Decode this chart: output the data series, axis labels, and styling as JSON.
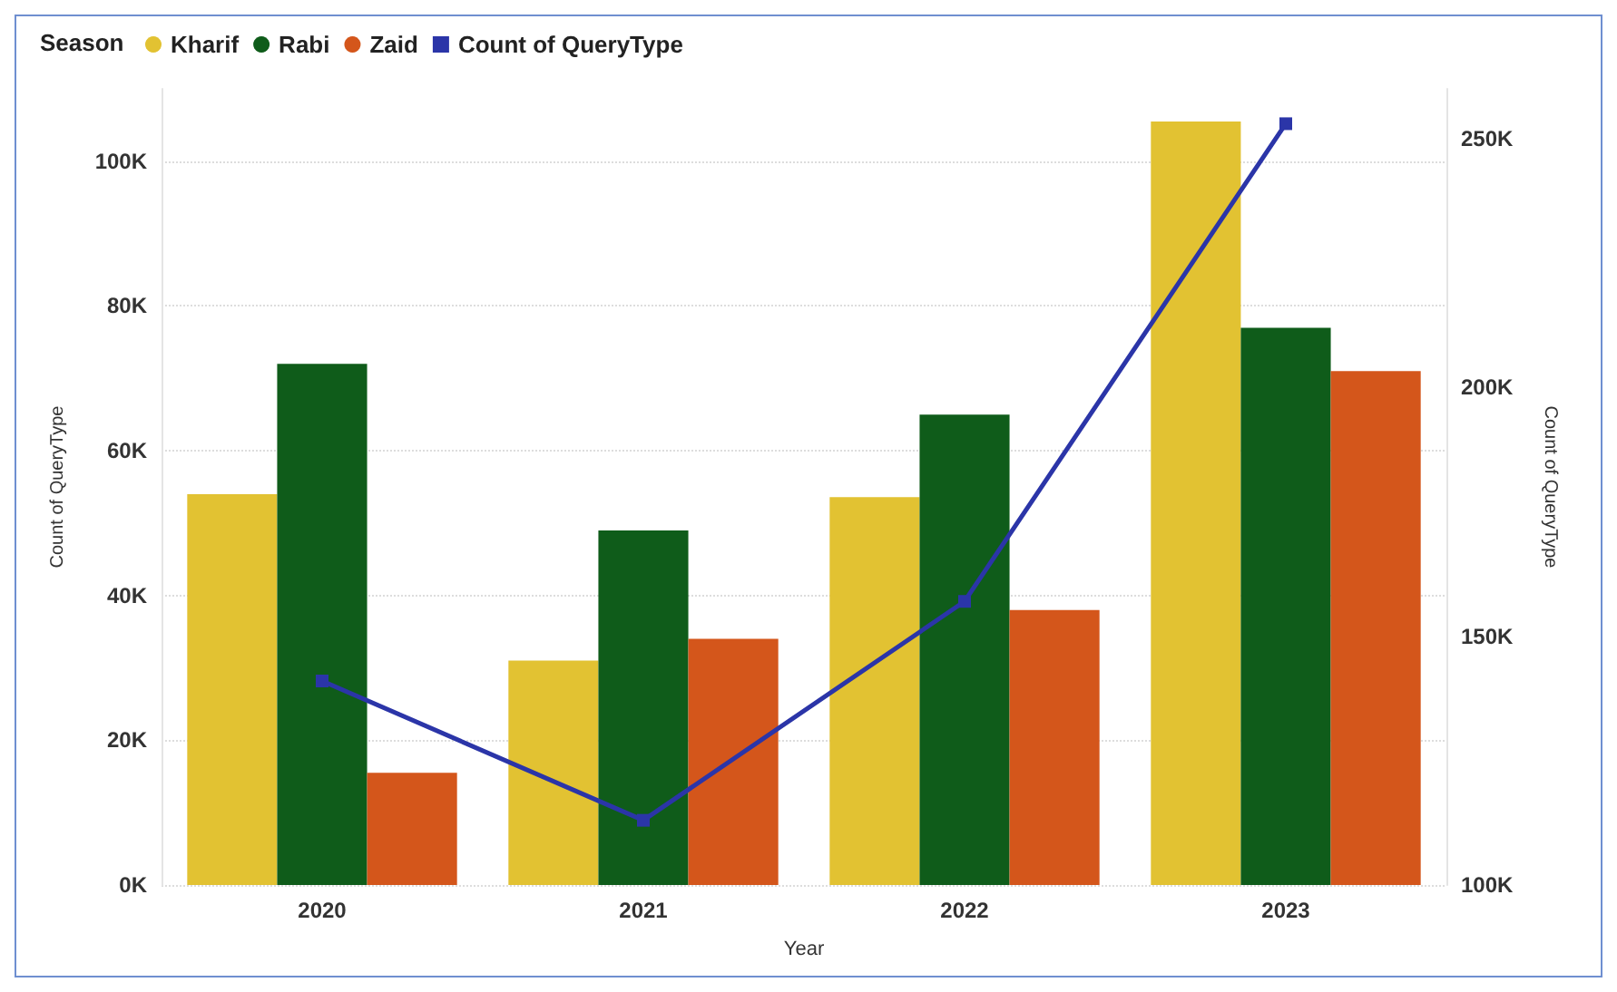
{
  "chart_data": {
    "type": "bar",
    "legend_title": "Season",
    "xlabel": "Year",
    "ylabel": "Count of QueryType",
    "y2label": "Count of QueryType",
    "categories": [
      "2020",
      "2021",
      "2022",
      "2023"
    ],
    "series": [
      {
        "name": "Kharif",
        "color": "#e2c232",
        "values": [
          54000,
          31000,
          53600,
          105500
        ]
      },
      {
        "name": "Rabi",
        "color": "#0f5c1a",
        "values": [
          72000,
          49000,
          65000,
          77000
        ]
      },
      {
        "name": "Zaid",
        "color": "#d4561b",
        "values": [
          15500,
          34000,
          38000,
          71000
        ]
      },
      {
        "name": "Count of QueryType",
        "type": "line",
        "axis": "y2",
        "color": "#2b35a8",
        "marker": "square",
        "values": [
          141000,
          113000,
          157000,
          253000
        ]
      }
    ],
    "ylim": [
      0,
      110000
    ],
    "yticks": [
      {
        "value": 0,
        "label": "0K"
      },
      {
        "value": 20000,
        "label": "20K"
      },
      {
        "value": 40000,
        "label": "40K"
      },
      {
        "value": 60000,
        "label": "60K"
      },
      {
        "value": 80000,
        "label": "80K"
      },
      {
        "value": 100000,
        "label": "100K"
      }
    ],
    "y2lim": [
      100000,
      260000
    ],
    "y2ticks": [
      {
        "value": 100000,
        "label": "100K"
      },
      {
        "value": 150000,
        "label": "150K"
      },
      {
        "value": 200000,
        "label": "200K"
      },
      {
        "value": 250000,
        "label": "250K"
      }
    ],
    "grid": "y",
    "legend": "top left"
  }
}
